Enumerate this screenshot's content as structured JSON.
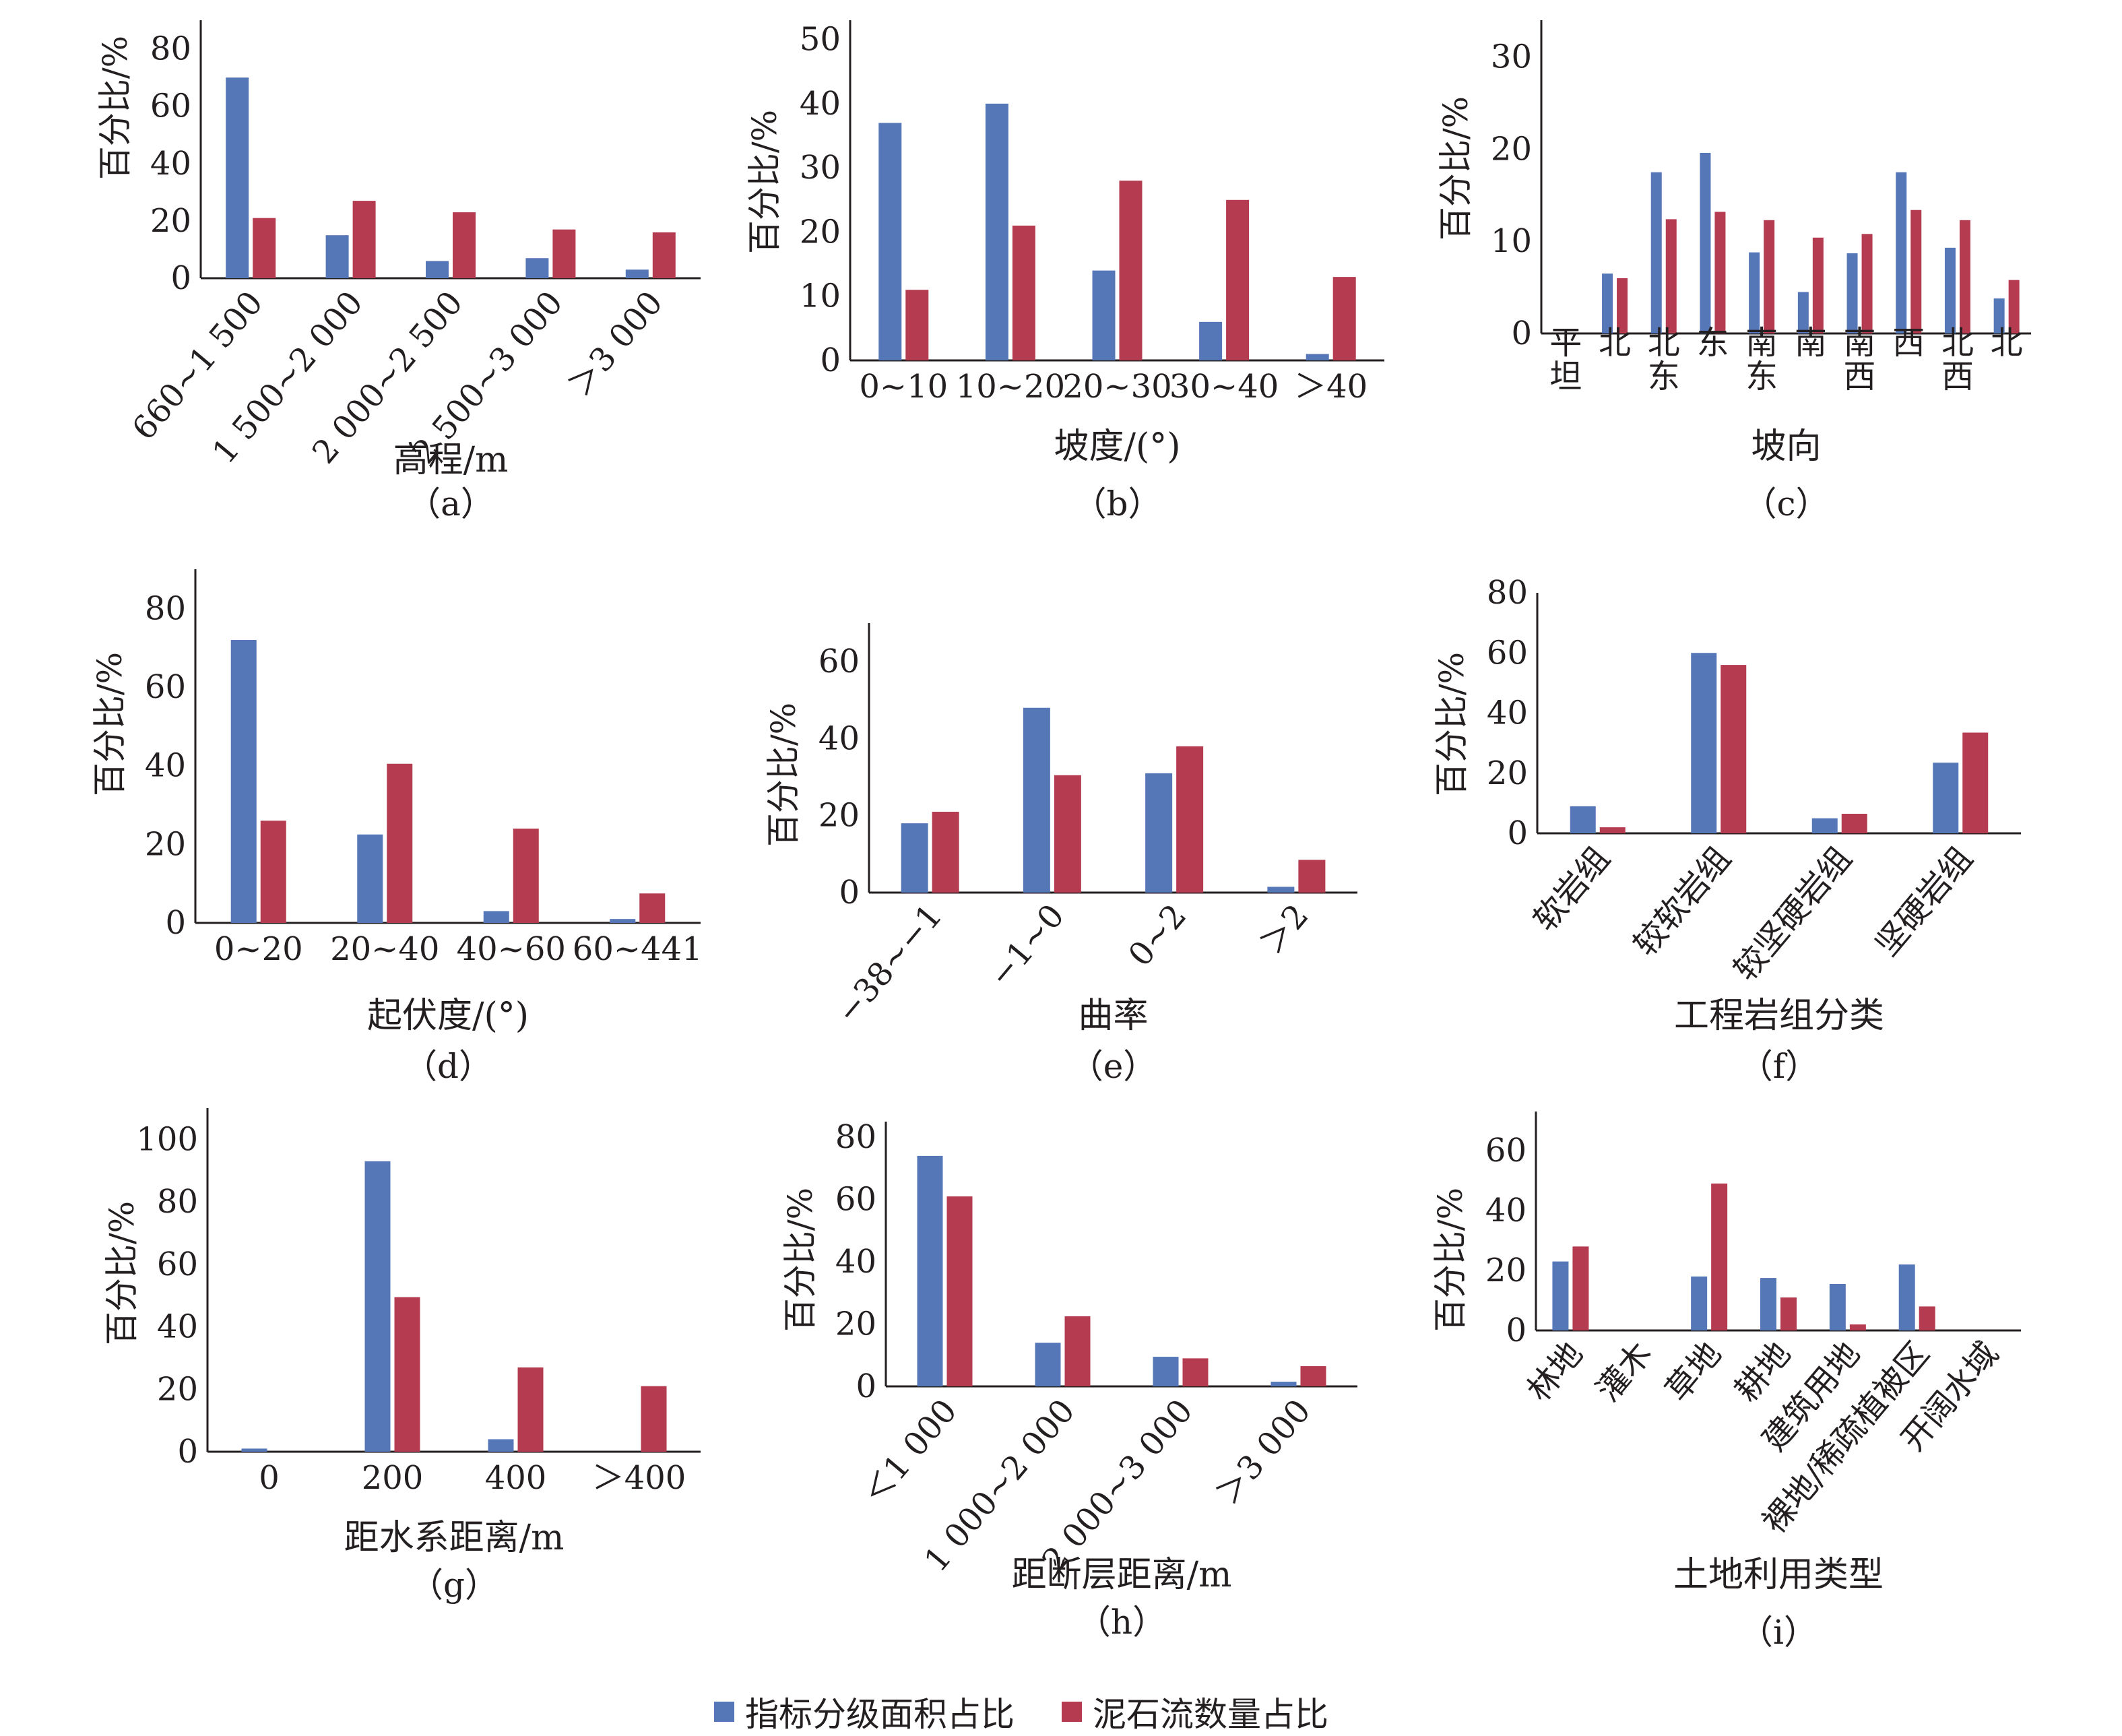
{
  "colors": {
    "area": "#5677b7",
    "count": "#b53b50",
    "axis": "#231f20"
  },
  "legend": {
    "area": "指标分级面积占比",
    "count": "泥石流数量占比"
  },
  "chart_data": [
    {
      "id": "a",
      "type": "bar",
      "caption": "（a）",
      "xlabel": "高程/m",
      "ylabel": "百分比/%",
      "ylim": [
        0,
        90
      ],
      "yticks": [
        0,
        20,
        40,
        60,
        80
      ],
      "rotate": true,
      "categories": [
        "660~1 500",
        "1 500~2 000",
        "2 000~2 500",
        "2 500~3 000",
        "＞3 000"
      ],
      "series": [
        {
          "name": "指标分级面积占比",
          "values": [
            70,
            15,
            6,
            7,
            3
          ]
        },
        {
          "name": "泥石流数量占比",
          "values": [
            21,
            27,
            23,
            17,
            16
          ]
        }
      ]
    },
    {
      "id": "b",
      "type": "bar",
      "caption": "（b）",
      "xlabel": "坡度/(°)",
      "ylabel": "百分比/%",
      "ylim": [
        0,
        53
      ],
      "yticks": [
        0,
        10,
        20,
        30,
        40,
        50
      ],
      "rotate": false,
      "categories": [
        "0~10",
        "10~20",
        "20~30",
        "30~40",
        "＞40"
      ],
      "series": [
        {
          "name": "指标分级面积占比",
          "values": [
            37,
            40,
            14,
            6,
            1
          ]
        },
        {
          "name": "泥石流数量占比",
          "values": [
            11,
            21,
            28,
            25,
            13
          ]
        }
      ]
    },
    {
      "id": "c",
      "type": "bar",
      "caption": "（c）",
      "xlabel": "坡向",
      "ylabel": "百分比/%",
      "ylim": [
        0,
        34
      ],
      "yticks": [
        0,
        10,
        20,
        30
      ],
      "rotate": false,
      "vertical_labels": true,
      "categories": [
        "平坦",
        "北",
        "北东",
        "东",
        "南东",
        "南",
        "南西",
        "西",
        "北西",
        "北"
      ],
      "series": [
        {
          "name": "指标分级面积占比",
          "values": [
            0,
            6.5,
            17.5,
            19.6,
            8.8,
            4.5,
            8.7,
            17.5,
            9.3,
            3.8
          ]
        },
        {
          "name": "泥石流数量占比",
          "values": [
            0,
            6,
            12.4,
            13.2,
            12.3,
            10.4,
            10.8,
            13.4,
            12.3,
            5.8
          ]
        }
      ]
    },
    {
      "id": "d",
      "type": "bar",
      "caption": "（d）",
      "xlabel": "起伏度/(°)",
      "ylabel": "百分比/%",
      "ylim": [
        0,
        90
      ],
      "yticks": [
        0,
        20,
        40,
        60,
        80
      ],
      "rotate": false,
      "categories": [
        "0~20",
        "20~40",
        "40~60",
        "60~441"
      ],
      "series": [
        {
          "name": "指标分级面积占比",
          "values": [
            72,
            22.5,
            3,
            1
          ]
        },
        {
          "name": "泥石流数量占比",
          "values": [
            26,
            40.5,
            24,
            7.5
          ]
        }
      ]
    },
    {
      "id": "e",
      "type": "bar",
      "caption": "（e）",
      "xlabel": "曲率",
      "ylabel": "百分比/%",
      "ylim": [
        0,
        70
      ],
      "yticks": [
        0,
        20,
        40,
        60
      ],
      "rotate": true,
      "categories": [
        "−38~−1",
        "−1~0",
        "0~2",
        "＞2"
      ],
      "series": [
        {
          "name": "指标分级面积占比",
          "values": [
            18,
            48,
            31,
            1.5
          ]
        },
        {
          "name": "泥石流数量占比",
          "values": [
            21,
            30.5,
            38,
            8.5
          ]
        }
      ]
    },
    {
      "id": "f",
      "type": "bar",
      "caption": "（f）",
      "xlabel": "工程岩组分类",
      "ylabel": "百分比/%",
      "ylim": [
        0,
        80
      ],
      "yticks": [
        0,
        20,
        40,
        60,
        80
      ],
      "rotate": true,
      "categories": [
        "软岩组",
        "较软岩组",
        "较坚硬岩组",
        "坚硬岩组"
      ],
      "series": [
        {
          "name": "指标分级面积占比",
          "values": [
            9,
            60,
            5,
            23.5
          ]
        },
        {
          "name": "泥石流数量占比",
          "values": [
            2,
            56,
            6.5,
            33.5
          ]
        }
      ]
    },
    {
      "id": "g",
      "type": "bar",
      "caption": "（g）",
      "xlabel": "距水系距离/m",
      "ylabel": "百分比/%",
      "ylim": [
        0,
        110
      ],
      "yticks": [
        0,
        20,
        40,
        60,
        80,
        100
      ],
      "rotate": false,
      "categories": [
        "0",
        "200",
        "400",
        "＞400"
      ],
      "series": [
        {
          "name": "指标分级面积占比",
          "values": [
            1,
            93,
            4,
            0
          ]
        },
        {
          "name": "泥石流数量占比",
          "values": [
            0,
            49.5,
            27,
            21
          ]
        }
      ]
    },
    {
      "id": "h",
      "type": "bar",
      "caption": "（h）",
      "xlabel": "距断层距离/m",
      "ylabel": "百分比/%",
      "ylim": [
        0,
        85
      ],
      "yticks": [
        0,
        20,
        40,
        60,
        80
      ],
      "rotate": true,
      "categories": [
        "＜1 000",
        "1 000~2 000",
        "2 000~3 000",
        "＞3 000"
      ],
      "series": [
        {
          "name": "指标分级面积占比",
          "values": [
            74,
            14,
            9.5,
            1.5
          ]
        },
        {
          "name": "泥石流数量占比",
          "values": [
            61,
            22.5,
            9,
            6.5
          ]
        }
      ]
    },
    {
      "id": "i",
      "type": "bar",
      "caption": "（i）",
      "xlabel": "土地利用类型",
      "ylabel": "百分比/%",
      "ylim": [
        0,
        73
      ],
      "yticks": [
        0,
        20,
        40,
        60
      ],
      "rotate": true,
      "categories": [
        "林地",
        "灌木",
        "草地",
        "耕地",
        "建筑用地",
        "裸地/稀疏植被区",
        "开阔水域"
      ],
      "series": [
        {
          "name": "指标分级面积占比",
          "values": [
            23,
            0,
            18,
            17.5,
            15.5,
            22,
            0
          ]
        },
        {
          "name": "泥石流数量占比",
          "values": [
            28,
            0,
            49,
            11,
            2,
            8,
            0
          ]
        }
      ]
    }
  ]
}
